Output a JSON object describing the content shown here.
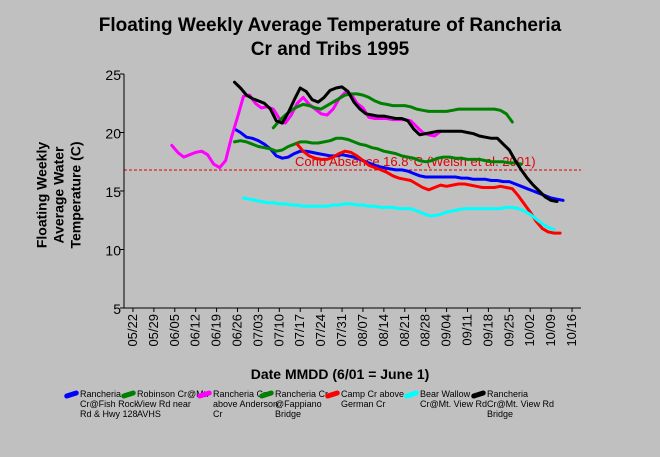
{
  "chart_data": {
    "type": "line",
    "title_lines": [
      "Floating Weekly Average Temperature of Rancheria",
      "Cr and Tribs 1995"
    ],
    "ylabel_lines": [
      "Floating Weekly",
      "Average Water",
      "Temperature (C)"
    ],
    "xlabel": "Date MMDD (6/01 = June 1)",
    "x_tick_labels": [
      "05/22",
      "05/29",
      "06/05",
      "06/12",
      "06/19",
      "06/26",
      "07/03",
      "07/10",
      "07/17",
      "07/24",
      "07/31",
      "08/07",
      "08/14",
      "08/21",
      "08/28",
      "09/04",
      "09/11",
      "09/18",
      "09/25",
      "10/02",
      "10/09",
      "10/16"
    ],
    "x_tick_days": [
      142,
      149,
      156,
      163,
      170,
      177,
      184,
      191,
      198,
      205,
      212,
      219,
      226,
      233,
      240,
      247,
      254,
      261,
      268,
      275,
      282,
      289
    ],
    "xlim": [
      139,
      292
    ],
    "ylim": [
      5,
      25
    ],
    "y_ticks": [
      5,
      10,
      15,
      20,
      25
    ],
    "grid": false,
    "legend_position": "bottom",
    "threshold": {
      "value": 16.8,
      "label": "Coho Absence 16.8°C (Welsh et al. 2001)",
      "color": "#e00000"
    },
    "series": [
      {
        "name": "Rancheria Cr@Fish Rock Rd & Hwy 128",
        "color": "#0000ff",
        "x": [
          176,
          178,
          180,
          182,
          184,
          186,
          188,
          190,
          192,
          194,
          196,
          198,
          200,
          202,
          204,
          206,
          208,
          210,
          212,
          214,
          216,
          218,
          220,
          222,
          224,
          226,
          228,
          230,
          232,
          234,
          236,
          238,
          240,
          242,
          244,
          246,
          248,
          250,
          252,
          254,
          256,
          258,
          260,
          262,
          264,
          266,
          268,
          270,
          272,
          274,
          276,
          278,
          280,
          282,
          284,
          286
        ],
        "y": [
          20.3,
          20.0,
          19.6,
          19.5,
          19.3,
          19.0,
          18.6,
          18.0,
          17.8,
          17.9,
          18.2,
          18.4,
          18.4,
          18.3,
          18.2,
          18.1,
          18.0,
          18.0,
          18.1,
          18.0,
          17.9,
          17.7,
          17.5,
          17.3,
          17.1,
          17.0,
          16.9,
          16.8,
          16.8,
          16.7,
          16.5,
          16.3,
          16.2,
          16.2,
          16.2,
          16.2,
          16.2,
          16.2,
          16.1,
          16.1,
          16.0,
          16.0,
          16.0,
          15.9,
          15.9,
          15.8,
          15.8,
          15.6,
          15.4,
          15.2,
          15.0,
          14.8,
          14.6,
          14.4,
          14.3,
          14.2
        ]
      },
      {
        "name": "Robinson Cr@Mt. View Rd near AVHS",
        "color": "#008000",
        "x": [
          176,
          178,
          180,
          182,
          184,
          186,
          188,
          190,
          192,
          194,
          196,
          198,
          200,
          202,
          204,
          206,
          208,
          210,
          212,
          214,
          216,
          218,
          220,
          222,
          224,
          226,
          228,
          230,
          232,
          234,
          236,
          238,
          240,
          242,
          244,
          246,
          248,
          250,
          252,
          254,
          256,
          258,
          260,
          262,
          264,
          266,
          268,
          270,
          272
        ],
        "y": [
          19.2,
          19.3,
          19.2,
          19.0,
          18.8,
          18.7,
          18.6,
          18.4,
          18.5,
          18.8,
          19.0,
          19.2,
          19.2,
          19.1,
          19.1,
          19.2,
          19.3,
          19.5,
          19.5,
          19.4,
          19.2,
          19.0,
          18.9,
          18.7,
          18.6,
          18.4,
          18.3,
          18.2,
          18.0,
          17.9,
          17.8,
          17.6,
          17.5,
          17.6,
          17.8,
          17.9,
          17.9,
          17.8,
          17.8,
          17.7,
          17.7,
          17.7,
          17.6,
          17.5,
          17.5,
          17.5,
          17.4,
          17.4,
          17.3
        ]
      },
      {
        "name": "Rancheria Cr above Anderson Cr",
        "color": "#ff00ff",
        "x": [
          155,
          157,
          159,
          161,
          163,
          165,
          167,
          169,
          171,
          173,
          175,
          177,
          179,
          181,
          183,
          185,
          187,
          189,
          191,
          193,
          195,
          197,
          199,
          201,
          203,
          205,
          207,
          209,
          211,
          213,
          215,
          217,
          219,
          221,
          223,
          225,
          227,
          229,
          231,
          233,
          235,
          237,
          239,
          241,
          243,
          245
        ],
        "y": [
          18.9,
          18.3,
          17.9,
          18.1,
          18.3,
          18.4,
          18.1,
          17.3,
          17.0,
          17.6,
          19.6,
          21.3,
          23.1,
          23.2,
          22.5,
          22.1,
          22.2,
          22.0,
          21.2,
          20.8,
          21.5,
          22.5,
          23.0,
          22.4,
          22.0,
          21.6,
          21.5,
          22.0,
          22.9,
          23.4,
          23.3,
          22.5,
          22.1,
          21.3,
          21.2,
          21.2,
          21.2,
          21.1,
          21.1,
          21.1,
          21.0,
          20.5,
          20.0,
          19.8,
          19.7,
          20.1
        ]
      },
      {
        "name": "Rancheria Cr @Fappiano Bridge",
        "color": "#008000",
        "x": [
          189,
          191,
          193,
          195,
          197,
          199,
          201,
          203,
          205,
          207,
          209,
          211,
          213,
          215,
          217,
          219,
          221,
          223,
          225,
          227,
          229,
          231,
          233,
          235,
          237,
          239,
          241,
          243,
          245,
          247,
          249,
          251,
          253,
          255,
          257,
          259,
          261,
          263,
          265,
          267,
          269
        ],
        "y": [
          20.4,
          21.0,
          21.5,
          21.9,
          22.2,
          22.4,
          22.3,
          22.1,
          22.0,
          22.3,
          22.6,
          22.9,
          23.2,
          23.3,
          23.3,
          23.2,
          23.0,
          22.7,
          22.5,
          22.4,
          22.3,
          22.3,
          22.3,
          22.2,
          22.0,
          21.9,
          21.8,
          21.8,
          21.8,
          21.8,
          21.9,
          22.0,
          22.0,
          22.0,
          22.0,
          22.0,
          22.0,
          22.0,
          21.9,
          21.6,
          20.9
        ]
      },
      {
        "name": "Camp Cr above German Cr",
        "color": "#ff0000",
        "x": [
          197,
          199,
          201,
          203,
          205,
          207,
          209,
          211,
          213,
          215,
          217,
          219,
          221,
          223,
          225,
          227,
          229,
          231,
          233,
          235,
          237,
          239,
          241,
          243,
          245,
          247,
          249,
          251,
          253,
          255,
          257,
          259,
          261,
          263,
          265,
          267,
          269,
          271,
          273,
          275,
          277,
          279,
          281,
          283,
          285
        ],
        "y": [
          19.0,
          18.4,
          18.0,
          17.8,
          17.7,
          17.7,
          17.9,
          18.2,
          18.4,
          18.3,
          18.0,
          17.6,
          17.2,
          17.0,
          16.8,
          16.6,
          16.3,
          16.1,
          16.0,
          15.9,
          15.6,
          15.3,
          15.1,
          15.3,
          15.5,
          15.4,
          15.5,
          15.6,
          15.6,
          15.5,
          15.4,
          15.3,
          15.3,
          15.3,
          15.4,
          15.3,
          15.2,
          14.6,
          13.9,
          13.2,
          12.4,
          11.8,
          11.5,
          11.4,
          11.4
        ]
      },
      {
        "name": "Bear Wallow Cr@Mt. View Rd",
        "color": "#00ffff",
        "x": [
          179,
          181,
          183,
          185,
          187,
          189,
          191,
          193,
          195,
          197,
          199,
          201,
          203,
          205,
          207,
          209,
          211,
          213,
          215,
          217,
          219,
          221,
          223,
          225,
          227,
          229,
          231,
          233,
          235,
          237,
          239,
          241,
          243,
          245,
          247,
          249,
          251,
          253,
          255,
          257,
          259,
          261,
          263,
          265,
          267,
          269,
          271,
          273,
          275,
          277,
          279,
          281,
          283
        ],
        "y": [
          14.4,
          14.3,
          14.2,
          14.1,
          14.0,
          14.0,
          13.9,
          13.9,
          13.8,
          13.8,
          13.7,
          13.7,
          13.7,
          13.7,
          13.7,
          13.8,
          13.8,
          13.9,
          13.9,
          13.8,
          13.8,
          13.7,
          13.7,
          13.6,
          13.6,
          13.6,
          13.5,
          13.5,
          13.5,
          13.3,
          13.1,
          12.9,
          12.9,
          13.0,
          13.2,
          13.3,
          13.4,
          13.5,
          13.5,
          13.5,
          13.5,
          13.5,
          13.5,
          13.5,
          13.6,
          13.6,
          13.5,
          13.3,
          13.0,
          12.6,
          12.2,
          11.9,
          11.7
        ]
      },
      {
        "name": "Rancheria Cr@Mt. View Rd Bridge",
        "color": "#000000",
        "x": [
          176,
          178,
          180,
          182,
          184,
          186,
          188,
          190,
          192,
          194,
          196,
          198,
          200,
          202,
          204,
          206,
          208,
          210,
          212,
          214,
          216,
          218,
          220,
          222,
          224,
          226,
          228,
          230,
          232,
          234,
          236,
          238,
          240,
          242,
          244,
          246,
          248,
          250,
          252,
          254,
          256,
          258,
          260,
          262,
          264,
          266,
          268,
          270,
          272,
          274,
          276,
          278,
          280,
          282,
          284
        ],
        "y": [
          24.3,
          23.8,
          23.2,
          22.9,
          22.7,
          22.5,
          22.0,
          21.0,
          20.8,
          21.7,
          22.8,
          23.8,
          23.5,
          22.8,
          22.6,
          23.0,
          23.6,
          23.8,
          23.9,
          23.5,
          22.6,
          22.0,
          21.6,
          21.5,
          21.4,
          21.4,
          21.3,
          21.2,
          21.2,
          21.0,
          20.3,
          19.8,
          19.9,
          20.0,
          20.1,
          20.1,
          20.1,
          20.1,
          20.1,
          20.0,
          19.9,
          19.7,
          19.6,
          19.5,
          19.5,
          19.0,
          18.5,
          17.6,
          16.8,
          16.1,
          15.5,
          15.0,
          14.5,
          14.2,
          14.1
        ]
      }
    ]
  }
}
